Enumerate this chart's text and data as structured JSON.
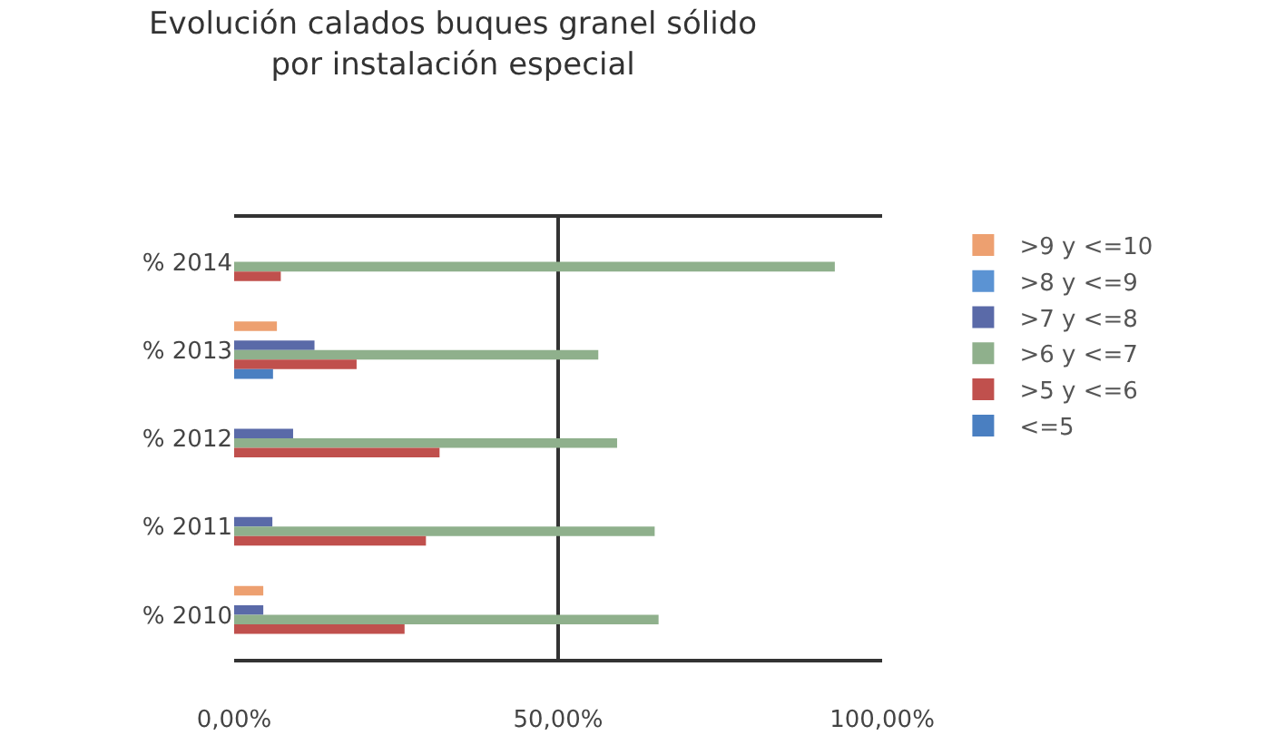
{
  "chart_data": {
    "type": "bar",
    "orientation": "horizontal",
    "title": "Evolución calados buques granel sólido\npor instalación especial",
    "categories": [
      "% 2014",
      "% 2013",
      "% 2012",
      "% 2011",
      "% 2010"
    ],
    "series": [
      {
        "name": ">9 y <=10",
        "color": "#eda070",
        "values": [
          null,
          6.6,
          null,
          null,
          4.5
        ]
      },
      {
        "name": ">8 y <=9",
        "color": "#5b93d3",
        "values": [
          null,
          null,
          null,
          null,
          null
        ]
      },
      {
        "name": ">7 y <=8",
        "color": "#5a6aa8",
        "values": [
          null,
          12.4,
          9.1,
          5.9,
          4.5
        ]
      },
      {
        "name": ">6 y <=7",
        "color": "#8fb08c",
        "values": [
          92.7,
          56.2,
          59.1,
          64.9,
          65.5
        ]
      },
      {
        "name": ">5 y <=6",
        "color": "#c0504d",
        "values": [
          7.2,
          18.9,
          31.7,
          29.6,
          26.3
        ]
      },
      {
        "name": "<=5",
        "color": "#4a7fc1",
        "values": [
          null,
          6.0,
          null,
          null,
          null
        ]
      }
    ],
    "xlim": [
      0,
      100
    ],
    "xticks": [
      {
        "value": 0,
        "label": "0,00%"
      },
      {
        "value": 50,
        "label": "50,00%"
      },
      {
        "value": 100,
        "label": "100,00%"
      }
    ],
    "grid": "x",
    "legend": "right"
  }
}
